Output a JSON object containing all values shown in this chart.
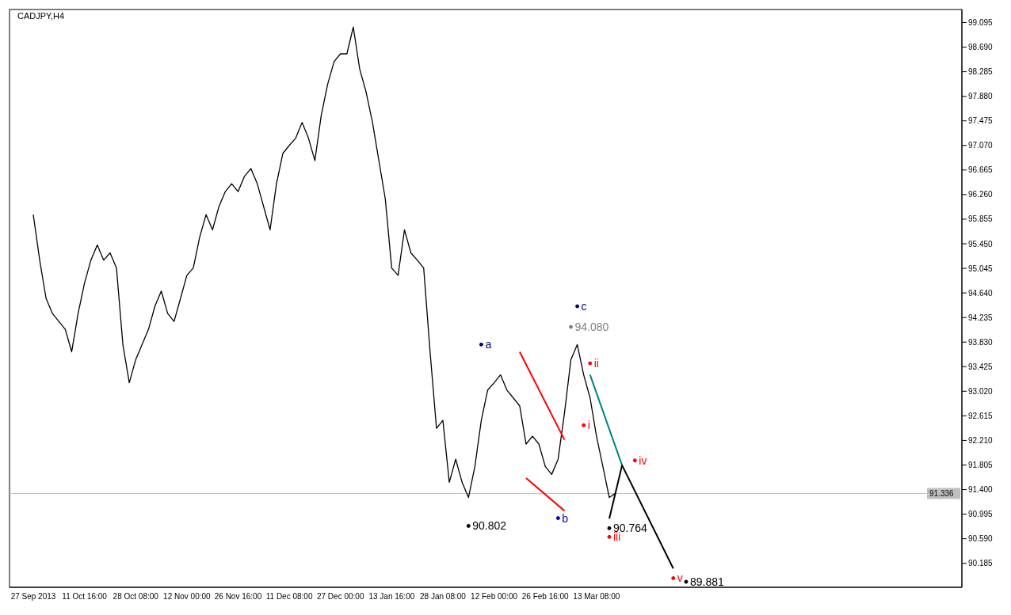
{
  "chart_data": {
    "type": "line",
    "title": "CADJPY,H4",
    "categories": [
      "27 Sep 2013",
      null,
      null,
      null,
      null,
      null,
      null,
      null,
      "11 Oct 16:00",
      null,
      null,
      null,
      null,
      null,
      null,
      null,
      "28 Oct 08:00",
      null,
      null,
      null,
      null,
      null,
      null,
      null,
      "12 Nov 00:00",
      null,
      null,
      null,
      null,
      null,
      null,
      null,
      "26 Nov 16:00",
      null,
      null,
      null,
      null,
      null,
      null,
      null,
      "11 Dec 08:00",
      null,
      null,
      null,
      null,
      null,
      null,
      null,
      "27 Dec 00:00",
      null,
      null,
      null,
      null,
      null,
      null,
      null,
      "13 Jan 16:00",
      null,
      null,
      null,
      null,
      null,
      null,
      null,
      "28 Jan 08:00",
      null,
      null,
      null,
      null,
      null,
      null,
      null,
      "12 Feb 00:00",
      null,
      null,
      null,
      null,
      null,
      null,
      null,
      "26 Feb 16:00",
      null,
      null,
      null,
      null,
      null,
      null,
      null,
      "13 Mar 08:00",
      null,
      null,
      null,
      null,
      null,
      null,
      null,
      null,
      null,
      null,
      null,
      null,
      null,
      null,
      null
    ],
    "series": [
      {
        "color": "#000000",
        "values": [
          95.93,
          95.18,
          94.55,
          94.3,
          94.17,
          94.04,
          93.67,
          94.3,
          94.8,
          95.18,
          95.43,
          95.18,
          95.3,
          95.05,
          93.79,
          93.16,
          93.54,
          93.79,
          94.04,
          94.42,
          94.67,
          94.3,
          94.17,
          94.55,
          94.93,
          95.05,
          95.56,
          95.93,
          95.68,
          96.06,
          96.31,
          96.44,
          96.31,
          96.56,
          96.69,
          96.44,
          96.06,
          95.68,
          96.44,
          96.94,
          97.07,
          97.19,
          97.45,
          97.19,
          96.82,
          97.57,
          98.08,
          98.45,
          98.58,
          98.58,
          99.02,
          98.33,
          97.95,
          97.45,
          96.82,
          96.19,
          95.05,
          94.93,
          95.68,
          95.3,
          95.18,
          95.05,
          93.67,
          92.41,
          92.54,
          91.52,
          91.9,
          91.52,
          91.27,
          91.78,
          92.54,
          93.04,
          93.16,
          93.29,
          93.04,
          92.91,
          92.78,
          92.15,
          92.28,
          92.15,
          91.78,
          91.65,
          91.9,
          92.66,
          93.54,
          93.79,
          93.29,
          92.91,
          92.28,
          91.78,
          91.27,
          91.34,
          null,
          null,
          null,
          null,
          null,
          null,
          null,
          null,
          null,
          null,
          null,
          null
        ]
      },
      {
        "color": "#ff0000",
        "values": [
          null,
          null,
          null,
          null,
          null,
          null,
          null,
          null,
          null,
          null,
          null,
          null,
          null,
          null,
          null,
          null,
          null,
          null,
          null,
          null,
          null,
          null,
          null,
          null,
          null,
          null,
          null,
          null,
          null,
          null,
          null,
          null,
          null,
          null,
          null,
          null,
          null,
          null,
          null,
          null,
          null,
          null,
          null,
          null,
          null,
          null,
          null,
          null,
          null,
          null,
          null,
          null,
          null,
          null,
          null,
          null,
          null,
          null,
          null,
          null,
          null,
          null,
          null,
          null,
          null,
          null,
          null,
          null,
          null,
          null,
          null,
          null,
          null,
          null,
          null,
          null,
          93.67,
          null,
          null,
          null,
          null,
          null,
          null,
          92.22,
          null,
          null,
          null,
          null,
          null,
          null,
          null,
          null,
          null,
          null,
          null,
          null,
          null,
          null,
          null,
          null,
          null,
          null,
          null,
          null
        ]
      },
      {
        "color": "#ff0000",
        "values": [
          null,
          null,
          null,
          null,
          null,
          null,
          null,
          null,
          null,
          null,
          null,
          null,
          null,
          null,
          null,
          null,
          null,
          null,
          null,
          null,
          null,
          null,
          null,
          null,
          null,
          null,
          null,
          null,
          null,
          null,
          null,
          null,
          null,
          null,
          null,
          null,
          null,
          null,
          null,
          null,
          null,
          null,
          null,
          null,
          null,
          null,
          null,
          null,
          null,
          null,
          null,
          null,
          null,
          null,
          null,
          null,
          null,
          null,
          null,
          null,
          null,
          null,
          null,
          null,
          null,
          null,
          null,
          null,
          null,
          null,
          null,
          null,
          null,
          null,
          null,
          null,
          null,
          91.59,
          null,
          null,
          null,
          null,
          null,
          91.05,
          null,
          null,
          null,
          null,
          null,
          null,
          null,
          null,
          null,
          null,
          null,
          null,
          null,
          null,
          null,
          null,
          null,
          null,
          null,
          null
        ]
      },
      {
        "color": "#008080",
        "values": [
          null,
          null,
          null,
          null,
          null,
          null,
          null,
          null,
          null,
          null,
          null,
          null,
          null,
          null,
          null,
          null,
          null,
          null,
          null,
          null,
          null,
          null,
          null,
          null,
          null,
          null,
          null,
          null,
          null,
          null,
          null,
          null,
          null,
          null,
          null,
          null,
          null,
          null,
          null,
          null,
          null,
          null,
          null,
          null,
          null,
          null,
          null,
          null,
          null,
          null,
          null,
          null,
          null,
          null,
          null,
          null,
          null,
          null,
          null,
          null,
          null,
          null,
          null,
          null,
          null,
          null,
          null,
          null,
          null,
          null,
          null,
          null,
          null,
          null,
          null,
          null,
          null,
          null,
          null,
          null,
          null,
          null,
          null,
          null,
          null,
          null,
          null,
          93.29,
          null,
          null,
          null,
          null,
          91.8,
          null,
          null,
          null,
          null,
          null,
          null,
          null,
          null,
          null,
          null,
          null
        ]
      },
      {
        "color": "#000000",
        "values": [
          null,
          null,
          null,
          null,
          null,
          null,
          null,
          null,
          null,
          null,
          null,
          null,
          null,
          null,
          null,
          null,
          null,
          null,
          null,
          null,
          null,
          null,
          null,
          null,
          null,
          null,
          null,
          null,
          null,
          null,
          null,
          null,
          null,
          null,
          null,
          null,
          null,
          null,
          null,
          null,
          null,
          null,
          null,
          null,
          null,
          null,
          null,
          null,
          null,
          null,
          null,
          null,
          null,
          null,
          null,
          null,
          null,
          null,
          null,
          null,
          null,
          null,
          null,
          null,
          null,
          null,
          null,
          null,
          null,
          null,
          null,
          null,
          null,
          null,
          null,
          null,
          null,
          null,
          null,
          null,
          null,
          null,
          null,
          null,
          null,
          null,
          null,
          null,
          null,
          null,
          90.92,
          null,
          91.8,
          null,
          null,
          null,
          null,
          null,
          null,
          null,
          90.1,
          null,
          null,
          null
        ]
      },
      {
        "type": "scatter",
        "marker": "circle",
        "color": "#000000",
        "values": [
          null,
          null,
          null,
          null,
          null,
          null,
          null,
          null,
          null,
          null,
          null,
          null,
          null,
          null,
          null,
          null,
          null,
          null,
          null,
          null,
          null,
          null,
          null,
          null,
          null,
          null,
          null,
          null,
          null,
          null,
          null,
          null,
          null,
          null,
          null,
          null,
          null,
          null,
          null,
          null,
          null,
          null,
          null,
          null,
          null,
          null,
          null,
          null,
          null,
          null,
          null,
          null,
          null,
          null,
          null,
          null,
          null,
          null,
          null,
          null,
          null,
          null,
          null,
          null,
          null,
          null,
          null,
          null,
          90.802,
          null,
          null,
          null,
          null,
          null,
          null,
          null,
          null,
          null,
          null,
          null,
          null,
          null,
          null,
          null,
          94.08,
          null,
          null,
          null,
          null,
          null,
          90.764,
          null,
          null,
          null,
          null,
          null,
          null,
          null,
          null,
          null,
          null,
          null,
          89.881,
          null
        ],
        "colors": [
          null,
          null,
          null,
          null,
          null,
          null,
          null,
          null,
          null,
          null,
          null,
          null,
          null,
          null,
          null,
          null,
          null,
          null,
          null,
          null,
          null,
          null,
          null,
          null,
          null,
          null,
          null,
          null,
          null,
          null,
          null,
          null,
          null,
          null,
          null,
          null,
          null,
          null,
          null,
          null,
          null,
          null,
          null,
          null,
          null,
          null,
          null,
          null,
          null,
          null,
          null,
          null,
          null,
          null,
          null,
          null,
          null,
          null,
          null,
          null,
          null,
          null,
          null,
          null,
          null,
          null,
          null,
          null,
          "#000000",
          null,
          null,
          null,
          null,
          null,
          null,
          null,
          null,
          null,
          null,
          null,
          null,
          null,
          null,
          null,
          "#808080",
          null,
          null,
          null,
          null,
          null,
          "#000000",
          null,
          null,
          null,
          null,
          null,
          null,
          null,
          null,
          null,
          null,
          null,
          "#000000",
          null
        ],
        "value_labels": [
          null,
          null,
          null,
          null,
          null,
          null,
          null,
          null,
          null,
          null,
          null,
          null,
          null,
          null,
          null,
          null,
          null,
          null,
          null,
          null,
          null,
          null,
          null,
          null,
          null,
          null,
          null,
          null,
          null,
          null,
          null,
          null,
          null,
          null,
          null,
          null,
          null,
          null,
          null,
          null,
          null,
          null,
          null,
          null,
          null,
          null,
          null,
          null,
          null,
          null,
          null,
          null,
          null,
          null,
          null,
          null,
          null,
          null,
          null,
          null,
          null,
          null,
          null,
          null,
          null,
          null,
          null,
          null,
          "90.802",
          null,
          null,
          null,
          null,
          null,
          null,
          null,
          null,
          null,
          null,
          null,
          null,
          null,
          null,
          null,
          "94.080",
          null,
          null,
          null,
          null,
          null,
          "90.764",
          null,
          null,
          null,
          null,
          null,
          null,
          null,
          null,
          null,
          null,
          null,
          "89.881",
          null
        ]
      },
      {
        "type": "scatter",
        "marker": "circle",
        "color": "#ff0000",
        "values": [
          null,
          null,
          null,
          null,
          null,
          null,
          null,
          null,
          null,
          null,
          null,
          null,
          null,
          null,
          null,
          null,
          null,
          null,
          null,
          null,
          null,
          null,
          null,
          null,
          null,
          null,
          null,
          null,
          null,
          null,
          null,
          null,
          null,
          null,
          null,
          null,
          null,
          null,
          null,
          null,
          null,
          null,
          null,
          null,
          null,
          null,
          null,
          null,
          null,
          null,
          null,
          null,
          null,
          null,
          null,
          null,
          null,
          null,
          null,
          null,
          null,
          null,
          null,
          null,
          null,
          null,
          null,
          null,
          null,
          null,
          93.79,
          null,
          null,
          null,
          null,
          null,
          null,
          null,
          null,
          null,
          null,
          null,
          90.93,
          null,
          null,
          94.42,
          92.46,
          93.48,
          null,
          null,
          90.62,
          null,
          null,
          null,
          91.88,
          null,
          null,
          null,
          null,
          null,
          89.94,
          null,
          null,
          null
        ],
        "colors": [
          null,
          null,
          null,
          null,
          null,
          null,
          null,
          null,
          null,
          null,
          null,
          null,
          null,
          null,
          null,
          null,
          null,
          null,
          null,
          null,
          null,
          null,
          null,
          null,
          null,
          null,
          null,
          null,
          null,
          null,
          null,
          null,
          null,
          null,
          null,
          null,
          null,
          null,
          null,
          null,
          null,
          null,
          null,
          null,
          null,
          null,
          null,
          null,
          null,
          null,
          null,
          null,
          null,
          null,
          null,
          null,
          null,
          null,
          null,
          null,
          null,
          null,
          null,
          null,
          null,
          null,
          null,
          null,
          null,
          null,
          "#000080",
          null,
          null,
          null,
          null,
          null,
          null,
          null,
          null,
          null,
          null,
          null,
          "#0000c0",
          null,
          null,
          "#000080",
          "#ff0000",
          "#ff0000",
          null,
          null,
          "#ff0000",
          null,
          null,
          null,
          "#ff0000",
          null,
          null,
          null,
          null,
          null,
          "#ff0000",
          null,
          null,
          null
        ],
        "value_labels": [
          null,
          null,
          null,
          null,
          null,
          null,
          null,
          null,
          null,
          null,
          null,
          null,
          null,
          null,
          null,
          null,
          null,
          null,
          null,
          null,
          null,
          null,
          null,
          null,
          null,
          null,
          null,
          null,
          null,
          null,
          null,
          null,
          null,
          null,
          null,
          null,
          null,
          null,
          null,
          null,
          null,
          null,
          null,
          null,
          null,
          null,
          null,
          null,
          null,
          null,
          null,
          null,
          null,
          null,
          null,
          null,
          null,
          null,
          null,
          null,
          null,
          null,
          null,
          null,
          null,
          null,
          null,
          null,
          null,
          null,
          "a",
          null,
          null,
          null,
          null,
          null,
          null,
          null,
          null,
          null,
          null,
          null,
          "b",
          null,
          null,
          "c",
          "i",
          "ii",
          null,
          null,
          "iii",
          null,
          null,
          null,
          "iv",
          null,
          null,
          null,
          null,
          null,
          "v",
          null,
          null,
          null
        ]
      }
    ],
    "ylim": [
      89.79,
      99.31
    ],
    "yticks": [
      90.185,
      {
        "value": 90.59,
        "label": "90.590"
      },
      90.995,
      {
        "value": 91.4,
        "label": "91.400"
      },
      91.805,
      {
        "value": 92.21,
        "label": "92.210"
      },
      92.615,
      {
        "value": 93.02,
        "label": "93.020"
      },
      93.425,
      {
        "value": 93.83,
        "label": "93.830"
      },
      94.235,
      {
        "value": 94.64,
        "label": "94.640"
      },
      95.045,
      {
        "value": 95.45,
        "label": "95.450"
      },
      95.855,
      {
        "value": 96.26,
        "label": "96.260"
      },
      96.665,
      {
        "value": 97.07,
        "label": "97.070"
      },
      97.475,
      {
        "value": 97.88,
        "label": "97.880"
      },
      98.285,
      {
        "value": 98.69,
        "label": "98.690"
      },
      99.095
    ],
    "ref_lines": [
      {
        "axis": "y",
        "value": 91.336,
        "label": "91.336",
        "color": "#c0c0c0"
      }
    ],
    "grid": false,
    "legend": false
  }
}
